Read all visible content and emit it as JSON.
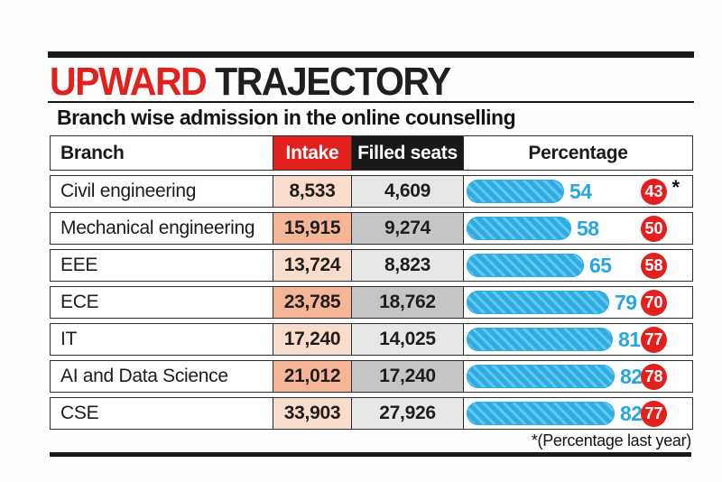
{
  "page": {
    "title_red": "UPWARD",
    "title_black": "TRAJECTORY",
    "subtitle": "Branch wise admission in the online counselling",
    "footnote": "*(Percentage last year)"
  },
  "colors": {
    "accent_red": "#e2201d",
    "bar_blue": "#2fade3",
    "bar_stripe_blue": "#63c7ef",
    "value_blue": "#29a6df",
    "intake_cell_light": "#fadccc",
    "intake_cell_dark": "#f5b698",
    "filled_cell_light": "#e7e7e7",
    "filled_cell_dark": "#c5c5c7",
    "header_black": "#191919"
  },
  "chart_data": {
    "type": "bar",
    "title": "UPWARD TRAJECTORY",
    "subtitle": "Branch wise admission in the online counselling",
    "columns": [
      "Branch",
      "Intake",
      "Filled seats",
      "Percentage"
    ],
    "xlim": [
      0,
      100
    ],
    "footnote": "*(Percentage last year)",
    "rows": [
      {
        "branch": "Civil engineering",
        "intake": "8,533",
        "filled_seats": "4,609",
        "percentage": 54,
        "percentage_last_year": 43,
        "asterisk": "*"
      },
      {
        "branch": "Mechanical engineering",
        "intake": "15,915",
        "filled_seats": "9,274",
        "percentage": 58,
        "percentage_last_year": 50
      },
      {
        "branch": "EEE",
        "intake": "13,724",
        "filled_seats": "8,823",
        "percentage": 65,
        "percentage_last_year": 58
      },
      {
        "branch": "ECE",
        "intake": "23,785",
        "filled_seats": "18,762",
        "percentage": 79,
        "percentage_last_year": 70
      },
      {
        "branch": "IT",
        "intake": "17,240",
        "filled_seats": "14,025",
        "percentage": 81,
        "percentage_last_year": 77
      },
      {
        "branch": "AI and Data Science",
        "intake": "21,012",
        "filled_seats": "17,240",
        "percentage": 82,
        "percentage_last_year": 78
      },
      {
        "branch": "CSE",
        "intake": "33,903",
        "filled_seats": "27,926",
        "percentage": 82,
        "percentage_last_year": 77
      }
    ]
  }
}
